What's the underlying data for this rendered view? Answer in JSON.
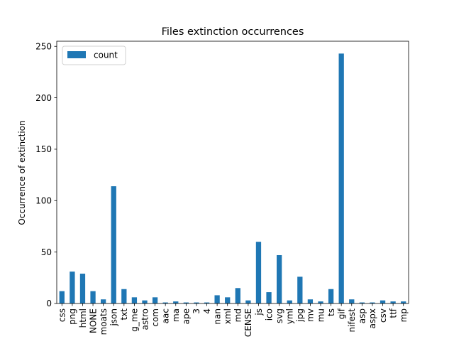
{
  "chart_data": {
    "type": "bar",
    "title": "Files extinction occurrences",
    "xlabel": "",
    "ylabel": "Occurrence of extinction",
    "ylim": [
      0,
      255
    ],
    "yticks": [
      0,
      50,
      100,
      150,
      200,
      250
    ],
    "legend_position": "top-left",
    "grid": false,
    "categories": [
      "css",
      "png",
      "html",
      "NONE",
      "moats",
      "json",
      "txt",
      "g_me",
      "astro",
      "com",
      "aac",
      "ma",
      "ape",
      "3",
      "4",
      "nan",
      "xml",
      "md",
      "CENSE",
      "js",
      "ico",
      "svg",
      "yml",
      "jpg",
      "mv",
      "mu",
      "ts",
      "gif",
      "nifest",
      "asp",
      "aspx",
      "csv",
      "ttf",
      "mp"
    ],
    "series": [
      {
        "name": "count",
        "color": "#1f77b4",
        "values": [
          12,
          31,
          29,
          12,
          4,
          114,
          14,
          6,
          3,
          6,
          1,
          2,
          1,
          1,
          1,
          8,
          6,
          15,
          3,
          60,
          11,
          47,
          3,
          26,
          4,
          2,
          14,
          243,
          4,
          1,
          1,
          3,
          2,
          2
        ]
      }
    ]
  }
}
